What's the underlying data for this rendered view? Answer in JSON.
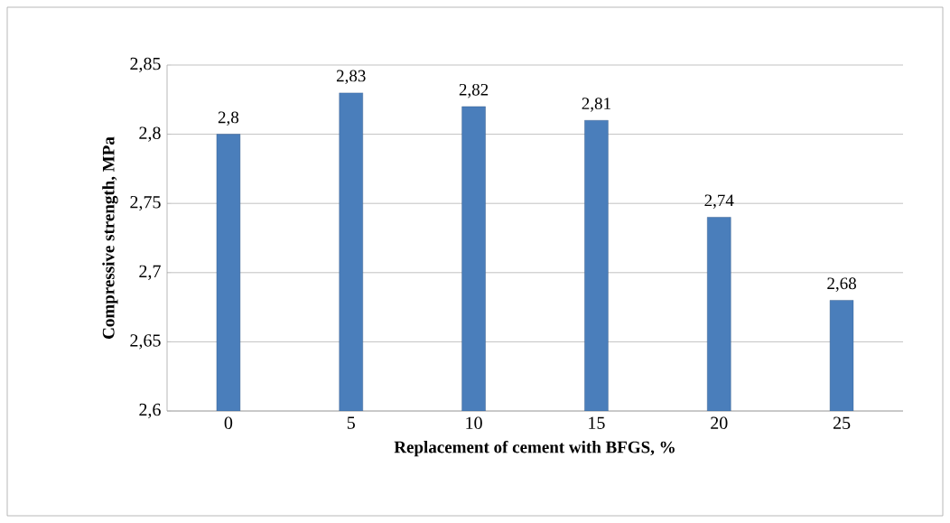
{
  "chart_data": {
    "type": "bar",
    "xlabel": "Replacement of cement with BFGS, %",
    "ylabel": "Compressive strength, MPa",
    "categories": [
      "0",
      "5",
      "10",
      "15",
      "20",
      "25"
    ],
    "values": [
      2.8,
      2.83,
      2.82,
      2.81,
      2.74,
      2.68
    ],
    "value_labels": [
      "2,8",
      "2,83",
      "2,82",
      "2,81",
      "2,74",
      "2,68"
    ],
    "color": "#4a7ebb",
    "ylim": [
      2.6,
      2.85
    ],
    "yticks": [
      {
        "value": 2.6,
        "label": "2,6"
      },
      {
        "value": 2.65,
        "label": "2,65"
      },
      {
        "value": 2.7,
        "label": "2,7"
      },
      {
        "value": 2.75,
        "label": "2,75"
      },
      {
        "value": 2.8,
        "label": "2,8"
      },
      {
        "value": 2.85,
        "label": "2,85"
      }
    ],
    "grid": "y"
  }
}
